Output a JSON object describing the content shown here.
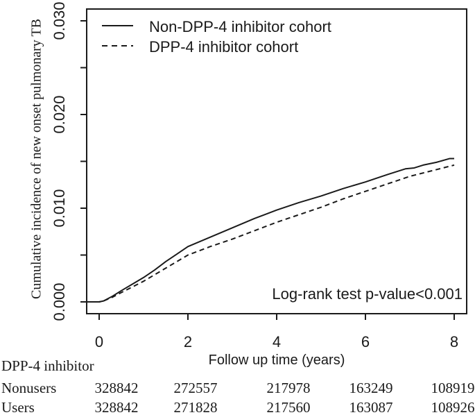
{
  "figure": {
    "background": "#ffffff",
    "line_color": "#1a1a1a",
    "text_color": "#1a1a1a"
  },
  "y_axis": {
    "label": "Cumulative incidence of new onset pulmonary TB",
    "tick_labels": [
      "0.000",
      "0.010",
      "0.020",
      "0.030"
    ],
    "tick_values": [
      0,
      0.01,
      0.02,
      0.03
    ],
    "minor_tick_values": [
      0.005,
      0.015,
      0.025
    ],
    "range": [
      0,
      0.03
    ]
  },
  "x_axis": {
    "label": "Follow up time (years)",
    "tick_labels": [
      "0",
      "2",
      "4",
      "6",
      "8"
    ],
    "tick_values": [
      0,
      2,
      4,
      6,
      8
    ],
    "range": [
      0,
      8
    ]
  },
  "legend": {
    "entries": [
      {
        "label": "Non-DPP-4 inhibitor cohort",
        "style": "solid"
      },
      {
        "label": "DPP-4 inhibitor cohort",
        "style": "dashed"
      }
    ]
  },
  "annotation": {
    "text": "Log-rank test p-value<0.001"
  },
  "risk_table": {
    "title": "DPP-4 inhibitor",
    "rows": [
      {
        "label": "Nonusers",
        "values": [
          "328842",
          "272557",
          "217978",
          "163249",
          "108919"
        ]
      },
      {
        "label": "Users",
        "values": [
          "328842",
          "271828",
          "217560",
          "163087",
          "108926"
        ]
      }
    ]
  },
  "chart_data": {
    "type": "line",
    "title": "",
    "xlabel": "Follow up time (years)",
    "ylabel": "Cumulative incidence of new onset pulmonary TB",
    "xlim": [
      0,
      8
    ],
    "ylim": [
      0,
      0.03
    ],
    "grid": false,
    "legend_position": "top-left",
    "annotation": "Log-rank test p-value<0.001",
    "series": [
      {
        "name": "Non-DPP-4 inhibitor cohort",
        "style": "solid",
        "x": [
          0,
          0.1,
          0.3,
          0.5,
          0.75,
          1,
          1.25,
          1.5,
          1.75,
          2,
          2.25,
          2.5,
          3,
          3.5,
          4,
          4.5,
          5,
          5.5,
          6,
          6.5,
          6.9,
          7.1,
          7.3,
          7.6,
          7.9,
          8
        ],
        "y": [
          0,
          0.0001,
          0.0006,
          0.0012,
          0.0019,
          0.0026,
          0.0034,
          0.0043,
          0.0051,
          0.0059,
          0.0064,
          0.0069,
          0.0079,
          0.0089,
          0.0098,
          0.0106,
          0.0113,
          0.0121,
          0.0128,
          0.0136,
          0.0142,
          0.0143,
          0.0146,
          0.0149,
          0.0153,
          0.0153
        ]
      },
      {
        "name": "DPP-4 inhibitor cohort",
        "style": "dashed",
        "x": [
          0,
          0.1,
          0.3,
          0.5,
          0.75,
          1,
          1.25,
          1.5,
          1.75,
          2,
          2.5,
          3,
          3.5,
          4,
          4.5,
          5,
          5.5,
          6,
          6.5,
          7,
          7.5,
          8
        ],
        "y": [
          0,
          0.0001,
          0.0005,
          0.001,
          0.0016,
          0.0022,
          0.0029,
          0.0036,
          0.0043,
          0.005,
          0.0059,
          0.0067,
          0.0076,
          0.0085,
          0.0093,
          0.0101,
          0.011,
          0.0118,
          0.0126,
          0.0134,
          0.014,
          0.0146
        ]
      }
    ]
  }
}
